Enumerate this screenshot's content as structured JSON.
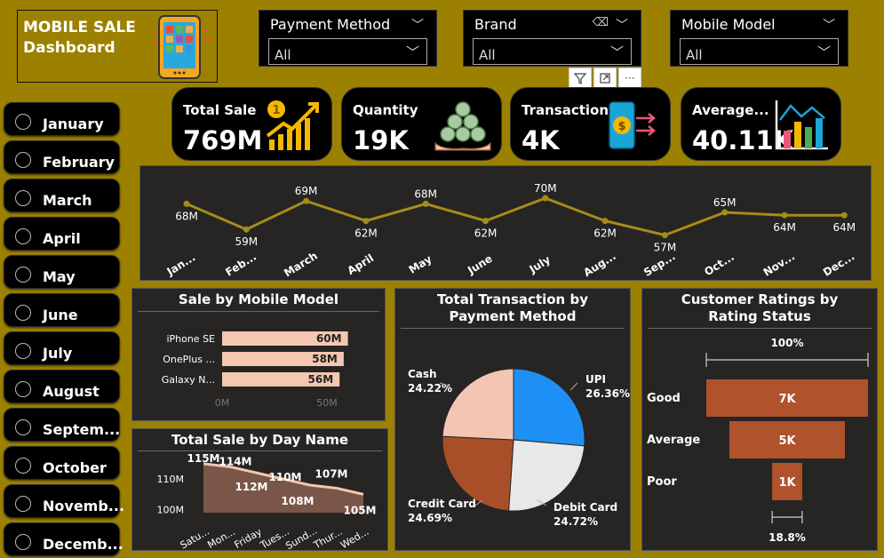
{
  "header": {
    "title_line1": "MOBILE SALE",
    "title_line2": "Dashboard"
  },
  "slicers": [
    {
      "label": "Payment Method",
      "value": "All"
    },
    {
      "label": "Brand",
      "value": "All"
    },
    {
      "label": "Mobile Model",
      "value": "All"
    }
  ],
  "months": [
    "January",
    "February",
    "March",
    "April",
    "May",
    "June",
    "July",
    "August",
    "Septem...",
    "October",
    "Novemb...",
    "Decemb..."
  ],
  "kpis": [
    {
      "label": "Total Sale",
      "value": "769M",
      "icon": "growth-chart-icon"
    },
    {
      "label": "Quantity",
      "value": "19K",
      "icon": "coins-hand-icon"
    },
    {
      "label": "Transaction",
      "value": "4K",
      "icon": "phone-payment-icon"
    },
    {
      "label": "Average...",
      "value": "40.11K",
      "icon": "bar-chart-icon"
    }
  ],
  "colors": {
    "background": "#9c8000",
    "panel": "#262524",
    "line": "#a58c1a",
    "bar": "#f5c6b0",
    "funnel": "#b0522b",
    "area": "#7a5648",
    "pie_upi": "#1e8ff5",
    "pie_debit": "#e8e8e8",
    "pie_credit": "#a84f2a",
    "pie_cash": "#f2c6b2"
  },
  "panels": {
    "monthly": {
      "title": ""
    },
    "by_model": {
      "title": "Sale by Mobile Model"
    },
    "by_day": {
      "title": "Total Sale by Day Name"
    },
    "payment": {
      "title": "Total Transaction by Payment Method"
    },
    "ratings": {
      "title": "Customer Ratings by Rating Status"
    }
  },
  "chart_data": [
    {
      "type": "line",
      "categories": [
        "Jan...",
        "Feb...",
        "March",
        "April",
        "May",
        "June",
        "July",
        "Aug...",
        "Sep...",
        "Oct...",
        "Nov...",
        "Dec..."
      ],
      "values": [
        68,
        59,
        69,
        62,
        68,
        62,
        70,
        62,
        57,
        65,
        64,
        64
      ],
      "labels": [
        "68M",
        "59M",
        "69M",
        "62M",
        "68M",
        "62M",
        "70M",
        "62M",
        "57M",
        "65M",
        "64M",
        "64M"
      ],
      "ylim": [
        50,
        75
      ]
    },
    {
      "type": "bar",
      "title": "Sale by Mobile Model",
      "categories": [
        "iPhone SE",
        "OnePlus ...",
        "Galaxy N..."
      ],
      "values": [
        60,
        58,
        56
      ],
      "labels": [
        "60M",
        "58M",
        "56M"
      ],
      "xticks": [
        "0M",
        "50M"
      ],
      "xlim": [
        0,
        60
      ]
    },
    {
      "type": "area",
      "title": "Total Sale by Day Name",
      "categories": [
        "Satu...",
        "Mon...",
        "Friday",
        "Tues...",
        "Sund...",
        "Thur...",
        "Wed..."
      ],
      "values": [
        115,
        114,
        112,
        110,
        108,
        107,
        105
      ],
      "labels": [
        "115M",
        "114M",
        "112M",
        "110M",
        "108M",
        "107M",
        "105M"
      ],
      "yticks": [
        "100M",
        "110M"
      ],
      "ylim": [
        99,
        117
      ]
    },
    {
      "type": "pie",
      "title": "Total Transaction by Payment Method",
      "slices": [
        {
          "name": "UPI",
          "value": 26.36,
          "label": "26.36%"
        },
        {
          "name": "Debit Card",
          "value": 24.72,
          "label": "24.72%"
        },
        {
          "name": "Credit Card",
          "value": 24.69,
          "label": "24.69%"
        },
        {
          "name": "Cash",
          "value": 24.22,
          "label": "24.22%"
        }
      ]
    },
    {
      "type": "bar",
      "title": "Customer Ratings by Rating Status",
      "categories": [
        "Good",
        "Average",
        "Poor"
      ],
      "values": [
        7,
        5,
        1.3
      ],
      "labels": [
        "7K",
        "5K",
        "1K"
      ],
      "top_percent": "100%",
      "bottom_percent": "18.8%"
    }
  ]
}
